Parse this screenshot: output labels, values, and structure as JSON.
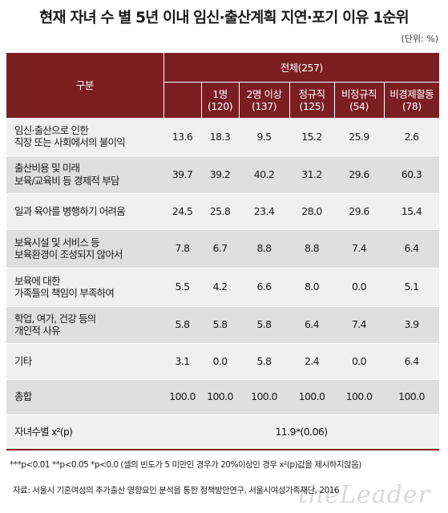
{
  "title": "현재 자녀 수 별 5년 이내 임신·출산계획 지연·포기 이유 1순위",
  "unit": "(단위: %)",
  "table": {
    "col_group_label": "구분",
    "total_label": "전체(257)",
    "columns": [
      {
        "name": "1명",
        "n": "(120)"
      },
      {
        "name": "2명 이상",
        "n": "(137)"
      },
      {
        "name": "정규직",
        "n": "(125)"
      },
      {
        "name": "비정규직",
        "n": "(54)"
      },
      {
        "name": "비경제활동",
        "n": "(78)"
      }
    ],
    "rows": [
      {
        "line1": "임신·출산으로 인한",
        "line2": "직장 또는 사회에서의 불이익",
        "values": [
          "13.6",
          "18.3",
          "9.5",
          "15.2",
          "25.9",
          "2.6"
        ]
      },
      {
        "line1": "출산비용 및 미래",
        "line2": "보육/교육비 등 경제적 부담",
        "values": [
          "39.7",
          "39.2",
          "40.2",
          "31.2",
          "29.6",
          "60.3"
        ]
      },
      {
        "line1": "일과 육아를 병행하기 어려움",
        "line2": "",
        "values": [
          "24.5",
          "25.8",
          "23.4",
          "28.0",
          "29.6",
          "15.4"
        ]
      },
      {
        "line1": "보육시설 및 서비스 등",
        "line2": "보육환경이 조성되지 않아서",
        "values": [
          "7.8",
          "6.7",
          "8.8",
          "8.8",
          "7.4",
          "6.4"
        ]
      },
      {
        "line1": "보육에 대한",
        "line2": "가족들의 책임이 부족하여",
        "values": [
          "5.5",
          "4.2",
          "6.6",
          "8.0",
          "0.0",
          "5.1"
        ]
      },
      {
        "line1": "학업, 여가, 건강 등의",
        "line2": "개인적 사유",
        "values": [
          "5.8",
          "5.8",
          "5.8",
          "6.4",
          "7.4",
          "3.9"
        ]
      },
      {
        "line1": "기타",
        "line2": "",
        "values": [
          "3.1",
          "0.0",
          "5.8",
          "2.4",
          "0.0",
          "6.4"
        ]
      },
      {
        "line1": "총합",
        "line2": "",
        "values": [
          "100.0",
          "100.0",
          "100.0",
          "100.0",
          "100.0",
          "100.0"
        ]
      }
    ],
    "chi_label": "자녀수별 x²(p)",
    "chi_value": "11.9*(0.06)"
  },
  "footnote": "***p<0.01 **p<0.05 *p<0.0 (셀의 빈도가 5 미만인 경우가 20%이상인 경우 x²(p)값을 제시하지않음)",
  "source": "자료: 서울시 기혼여성의 추가출산 영향요인 분석을 통한 정책방안연구, 서울시여성가족재단, 2016",
  "watermark": "theLeader"
}
